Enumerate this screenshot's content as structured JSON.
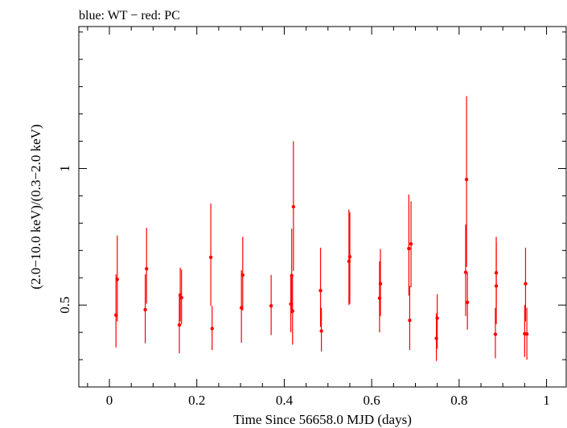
{
  "chart_data": {
    "type": "scatter",
    "title": "blue: WT − red: PC",
    "xlabel": "Time Since 56658.0 MJD (days)",
    "ylabel": "(2.0−10.0 keV)/(0.3−2.0 keV)",
    "xlim": [
      -0.07,
      1.045
    ],
    "ylim": [
      0.2,
      1.52
    ],
    "xticks": [
      {
        "value": 0,
        "label": "0"
      },
      {
        "value": 0.2,
        "label": "0.2"
      },
      {
        "value": 0.4,
        "label": "0.4"
      },
      {
        "value": 0.6,
        "label": "0.6"
      },
      {
        "value": 0.8,
        "label": "0.8"
      },
      {
        "value": 1,
        "label": "1"
      }
    ],
    "yticks": [
      {
        "value": 0.5,
        "label": "0.5"
      },
      {
        "value": 1,
        "label": "1"
      }
    ],
    "grid": false,
    "series": [
      {
        "name": "PC",
        "color": "#ff0000",
        "points": [
          {
            "x": 0.015,
            "y": 0.463,
            "ylo": 0.345,
            "yhi": 0.612
          },
          {
            "x": 0.018,
            "y": 0.594,
            "ylo": 0.44,
            "yhi": 0.755
          },
          {
            "x": 0.082,
            "y": 0.483,
            "ylo": 0.36,
            "yhi": 0.613
          },
          {
            "x": 0.085,
            "y": 0.633,
            "ylo": 0.505,
            "yhi": 0.783
          },
          {
            "x": 0.16,
            "y": 0.427,
            "ylo": 0.323,
            "yhi": 0.542
          },
          {
            "x": 0.162,
            "y": 0.537,
            "ylo": 0.44,
            "yhi": 0.637
          },
          {
            "x": 0.165,
            "y": 0.527,
            "ylo": 0.43,
            "yhi": 0.63
          },
          {
            "x": 0.232,
            "y": 0.675,
            "ylo": 0.497,
            "yhi": 0.872
          },
          {
            "x": 0.235,
            "y": 0.414,
            "ylo": 0.335,
            "yhi": 0.497
          },
          {
            "x": 0.302,
            "y": 0.49,
            "ylo": 0.362,
            "yhi": 0.628
          },
          {
            "x": 0.305,
            "y": 0.61,
            "ylo": 0.48,
            "yhi": 0.75
          },
          {
            "x": 0.37,
            "y": 0.497,
            "ylo": 0.39,
            "yhi": 0.61
          },
          {
            "x": 0.415,
            "y": 0.504,
            "ylo": 0.4,
            "yhi": 0.61
          },
          {
            "x": 0.417,
            "y": 0.608,
            "ylo": 0.47,
            "yhi": 0.78
          },
          {
            "x": 0.419,
            "y": 0.478,
            "ylo": 0.355,
            "yhi": 0.61
          },
          {
            "x": 0.421,
            "y": 0.86,
            "ylo": 0.625,
            "yhi": 1.1
          },
          {
            "x": 0.483,
            "y": 0.553,
            "ylo": 0.42,
            "yhi": 0.71
          },
          {
            "x": 0.485,
            "y": 0.405,
            "ylo": 0.33,
            "yhi": 0.49
          },
          {
            "x": 0.548,
            "y": 0.66,
            "ylo": 0.5,
            "yhi": 0.85
          },
          {
            "x": 0.55,
            "y": 0.677,
            "ylo": 0.505,
            "yhi": 0.84
          },
          {
            "x": 0.618,
            "y": 0.525,
            "ylo": 0.4,
            "yhi": 0.66
          },
          {
            "x": 0.62,
            "y": 0.578,
            "ylo": 0.46,
            "yhi": 0.705
          },
          {
            "x": 0.685,
            "y": 0.707,
            "ylo": 0.535,
            "yhi": 0.905
          },
          {
            "x": 0.687,
            "y": 0.444,
            "ylo": 0.335,
            "yhi": 0.57
          },
          {
            "x": 0.69,
            "y": 0.724,
            "ylo": 0.565,
            "yhi": 0.88
          },
          {
            "x": 0.748,
            "y": 0.378,
            "ylo": 0.295,
            "yhi": 0.47
          },
          {
            "x": 0.75,
            "y": 0.452,
            "ylo": 0.34,
            "yhi": 0.54
          },
          {
            "x": 0.815,
            "y": 0.62,
            "ylo": 0.46,
            "yhi": 0.795
          },
          {
            "x": 0.817,
            "y": 0.96,
            "ylo": 0.64,
            "yhi": 1.265
          },
          {
            "x": 0.819,
            "y": 0.51,
            "ylo": 0.41,
            "yhi": 0.62
          },
          {
            "x": 0.883,
            "y": 0.393,
            "ylo": 0.305,
            "yhi": 0.49
          },
          {
            "x": 0.885,
            "y": 0.618,
            "ylo": 0.49,
            "yhi": 0.75
          },
          {
            "x": 0.885,
            "y": 0.57,
            "ylo": 0.43,
            "yhi": 0.73
          },
          {
            "x": 0.95,
            "y": 0.395,
            "ylo": 0.31,
            "yhi": 0.5
          },
          {
            "x": 0.952,
            "y": 0.578,
            "ylo": 0.44,
            "yhi": 0.71
          },
          {
            "x": 0.955,
            "y": 0.394,
            "ylo": 0.3,
            "yhi": 0.49
          }
        ]
      }
    ]
  }
}
